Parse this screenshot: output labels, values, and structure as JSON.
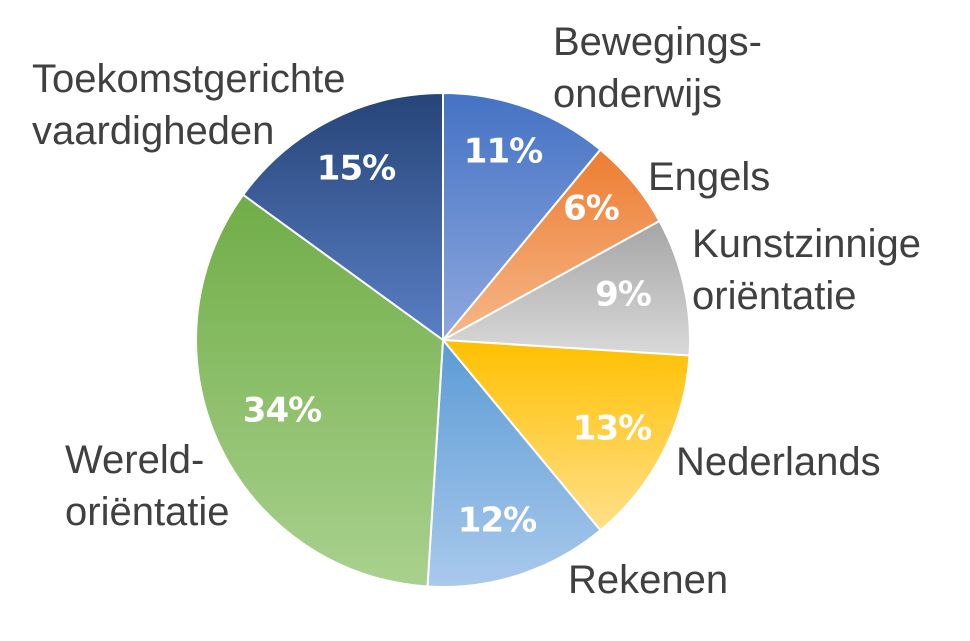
{
  "chart_data": {
    "type": "pie",
    "slices": [
      {
        "name": "Bewegings- onderwijs",
        "lines": [
          "Bewegings-",
          "onderwijs"
        ],
        "value": 11,
        "pct_label": "11%",
        "color_top": "#4472c4",
        "color_bottom": "#8fa8de"
      },
      {
        "name": "Engels",
        "lines": [
          "Engels"
        ],
        "value": 6,
        "pct_label": "6%",
        "color_top": "#ed7d31",
        "color_bottom": "#f5b88a"
      },
      {
        "name": "Kunstzinnige oriëntatie",
        "lines": [
          "Kunstzinnige",
          "oriëntatie"
        ],
        "value": 9,
        "pct_label": "9%",
        "color_top": "#a5a5a5",
        "color_bottom": "#d9d9d9"
      },
      {
        "name": "Nederlands",
        "lines": [
          "Nederlands"
        ],
        "value": 13,
        "pct_label": "13%",
        "color_top": "#ffc000",
        "color_bottom": "#ffe08a"
      },
      {
        "name": "Rekenen",
        "lines": [
          "Rekenen"
        ],
        "value": 12,
        "pct_label": "12%",
        "color_top": "#5b9bd5",
        "color_bottom": "#a9c9ec"
      },
      {
        "name": "Wereld- oriëntatie",
        "lines": [
          "Wereld-",
          "oriëntatie"
        ],
        "value": 34,
        "pct_label": "34%",
        "color_top": "#70ad47",
        "color_bottom": "#a9d18e"
      },
      {
        "name": "Toekomstgerichte vaardigheden",
        "lines": [
          "Toekomstgerichte",
          "vaardigheden"
        ],
        "value": 15,
        "pct_label": "15%",
        "color_top": "#264478",
        "color_bottom": "#5a7fc4"
      }
    ],
    "start_angle_deg": 0,
    "direction": "clockwise",
    "legend": "none"
  }
}
